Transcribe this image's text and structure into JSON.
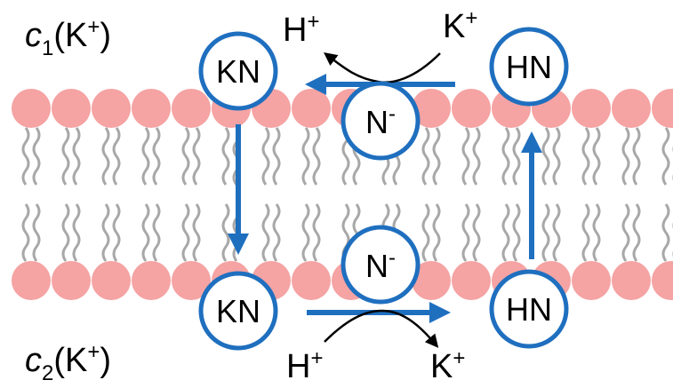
{
  "concentrations": [
    {
      "symbol": "c",
      "index": "1",
      "ion": "K",
      "charge": "+"
    },
    {
      "symbol": "c",
      "index": "2",
      "ion": "K",
      "charge": "+"
    }
  ],
  "nodes": [
    {
      "label": "KN"
    },
    {
      "label": "HN"
    },
    {
      "label": "N",
      "charge": "-"
    },
    {
      "label": "N",
      "charge": "-"
    },
    {
      "label": "KN"
    },
    {
      "label": "HN"
    }
  ],
  "ions": [
    {
      "label": "H",
      "charge": "+"
    },
    {
      "label": "K",
      "charge": "+"
    },
    {
      "label": "H",
      "charge": "+"
    },
    {
      "label": "K",
      "charge": "+"
    }
  ]
}
